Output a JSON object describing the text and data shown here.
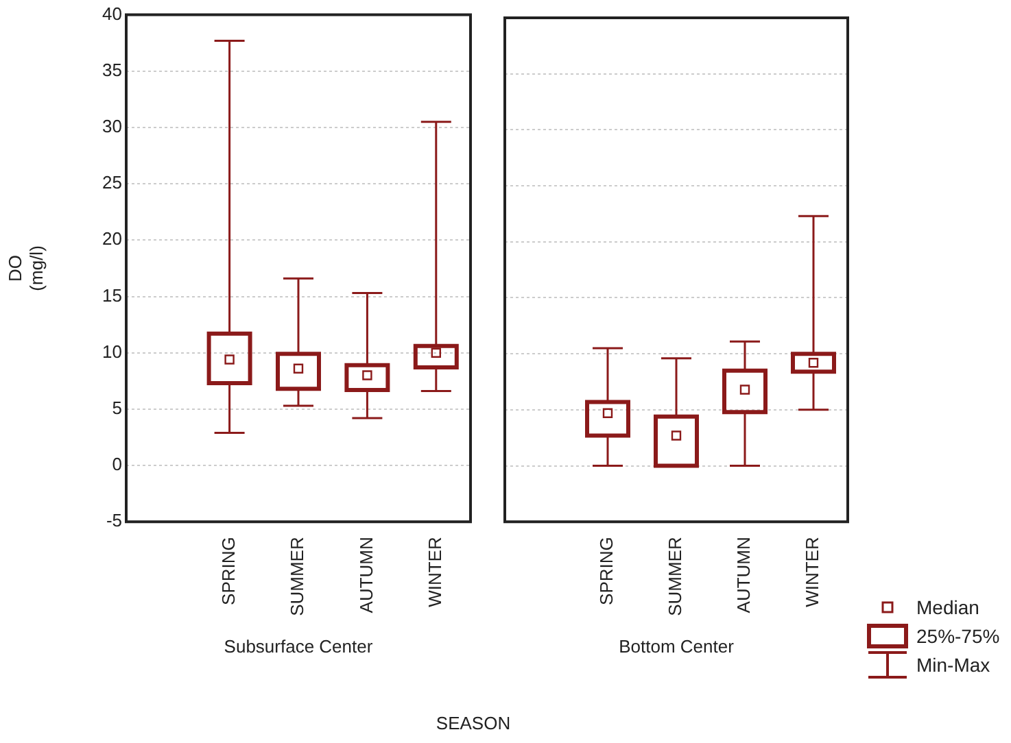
{
  "chart_data": [
    {
      "type": "box",
      "xlabel": "Subsurface Center",
      "ylabel": "DO (mg/l)",
      "categories": [
        "SPRING",
        "SUMMER",
        "AUTUMN",
        "WINTER"
      ],
      "series": [
        {
          "color": "#8b1a1a",
          "boxes": [
            {
              "low": 2.9,
              "q1": 7.3,
              "median": 9.4,
              "q3": 11.7,
              "high": 37.7
            },
            {
              "low": 5.3,
              "q1": 6.8,
              "median": 8.6,
              "q3": 9.9,
              "high": 16.6
            },
            {
              "low": 4.2,
              "q1": 6.7,
              "median": 8.0,
              "q3": 8.9,
              "high": 15.3
            },
            {
              "low": 6.6,
              "q1": 8.7,
              "median": 10.0,
              "q3": 10.6,
              "high": 30.5
            }
          ]
        }
      ],
      "ylim": [
        -5,
        40
      ],
      "yticks": [
        -5,
        0,
        5,
        10,
        15,
        20,
        25,
        30,
        35,
        40
      ],
      "grid": "y",
      "annotations": [
        "SEASON"
      ]
    },
    {
      "type": "box",
      "xlabel": "Bottom Center",
      "categories": [
        "SPRING",
        "SUMMER",
        "AUTUMN",
        "WINTER"
      ],
      "series": [
        {
          "color": "#8b1a1a",
          "boxes": [
            {
              "low": 0,
              "q1": 2.7,
              "median": 4.7,
              "q3": 5.7,
              "high": 10.5
            },
            {
              "low": 0,
              "q1": 0,
              "median": 2.7,
              "q3": 4.4,
              "high": 9.6
            },
            {
              "low": 0,
              "q1": 4.8,
              "median": 6.8,
              "q3": 8.5,
              "high": 11.1
            },
            {
              "low": 5.0,
              "q1": 8.4,
              "median": 9.2,
              "q3": 10.0,
              "high": 22.3
            }
          ]
        }
      ],
      "ylim": [
        -5,
        40
      ],
      "yticks": [
        -5,
        0,
        5,
        10,
        15,
        20,
        25,
        30,
        35,
        40
      ],
      "grid": "y",
      "tick_labels": "x",
      "annotations": [
        "Median",
        "25%-75%",
        "Min-Max"
      ]
    }
  ]
}
